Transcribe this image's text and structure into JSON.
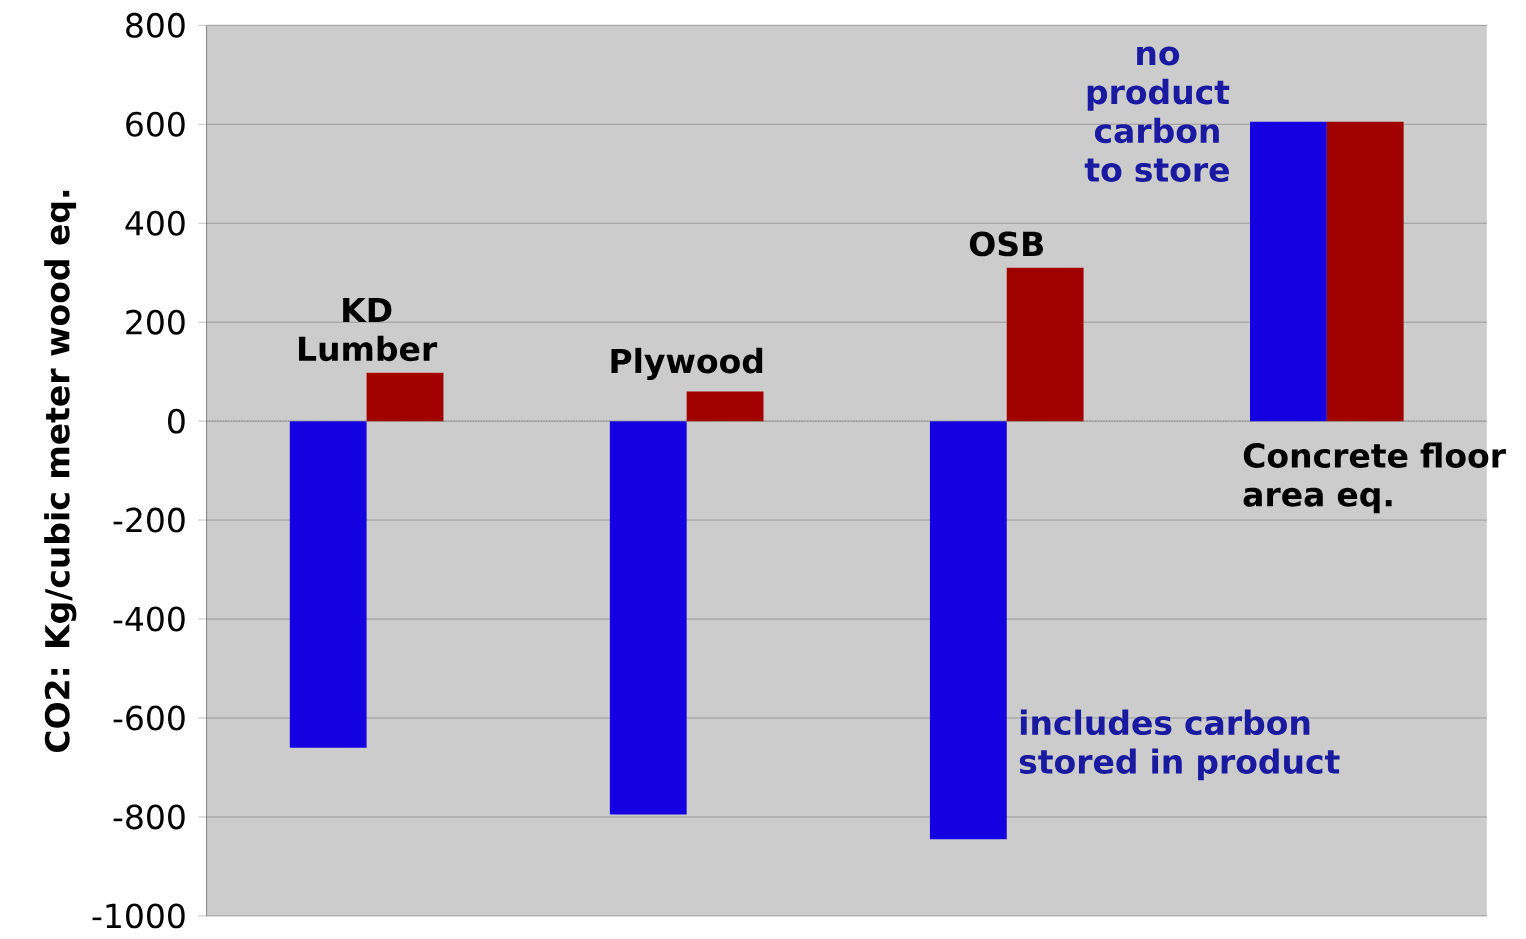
{
  "chart_data": {
    "type": "bar",
    "ylabel": "CO2: Kg/cubic meter wood eq.",
    "categories": [
      "KD Lumber",
      "Plywood",
      "OSB",
      "Concrete floor area eq."
    ],
    "series": [
      {
        "color": "#1400e0",
        "values": [
          -660,
          -795,
          -845,
          605
        ]
      },
      {
        "color": "#a00000",
        "values": [
          98,
          60,
          310,
          605
        ]
      }
    ],
    "ylim": [
      -1000,
      800
    ],
    "yticks": [
      -1000,
      -800,
      -600,
      -400,
      -200,
      0,
      200,
      400,
      600,
      800
    ],
    "grid": "y",
    "annotations": [
      "no product carbon to store",
      "includes carbon stored in product"
    ],
    "ref_lines": [
      {
        "axis": "y",
        "value": 0,
        "color": "#666666",
        "line_style": "dotted"
      }
    ]
  }
}
